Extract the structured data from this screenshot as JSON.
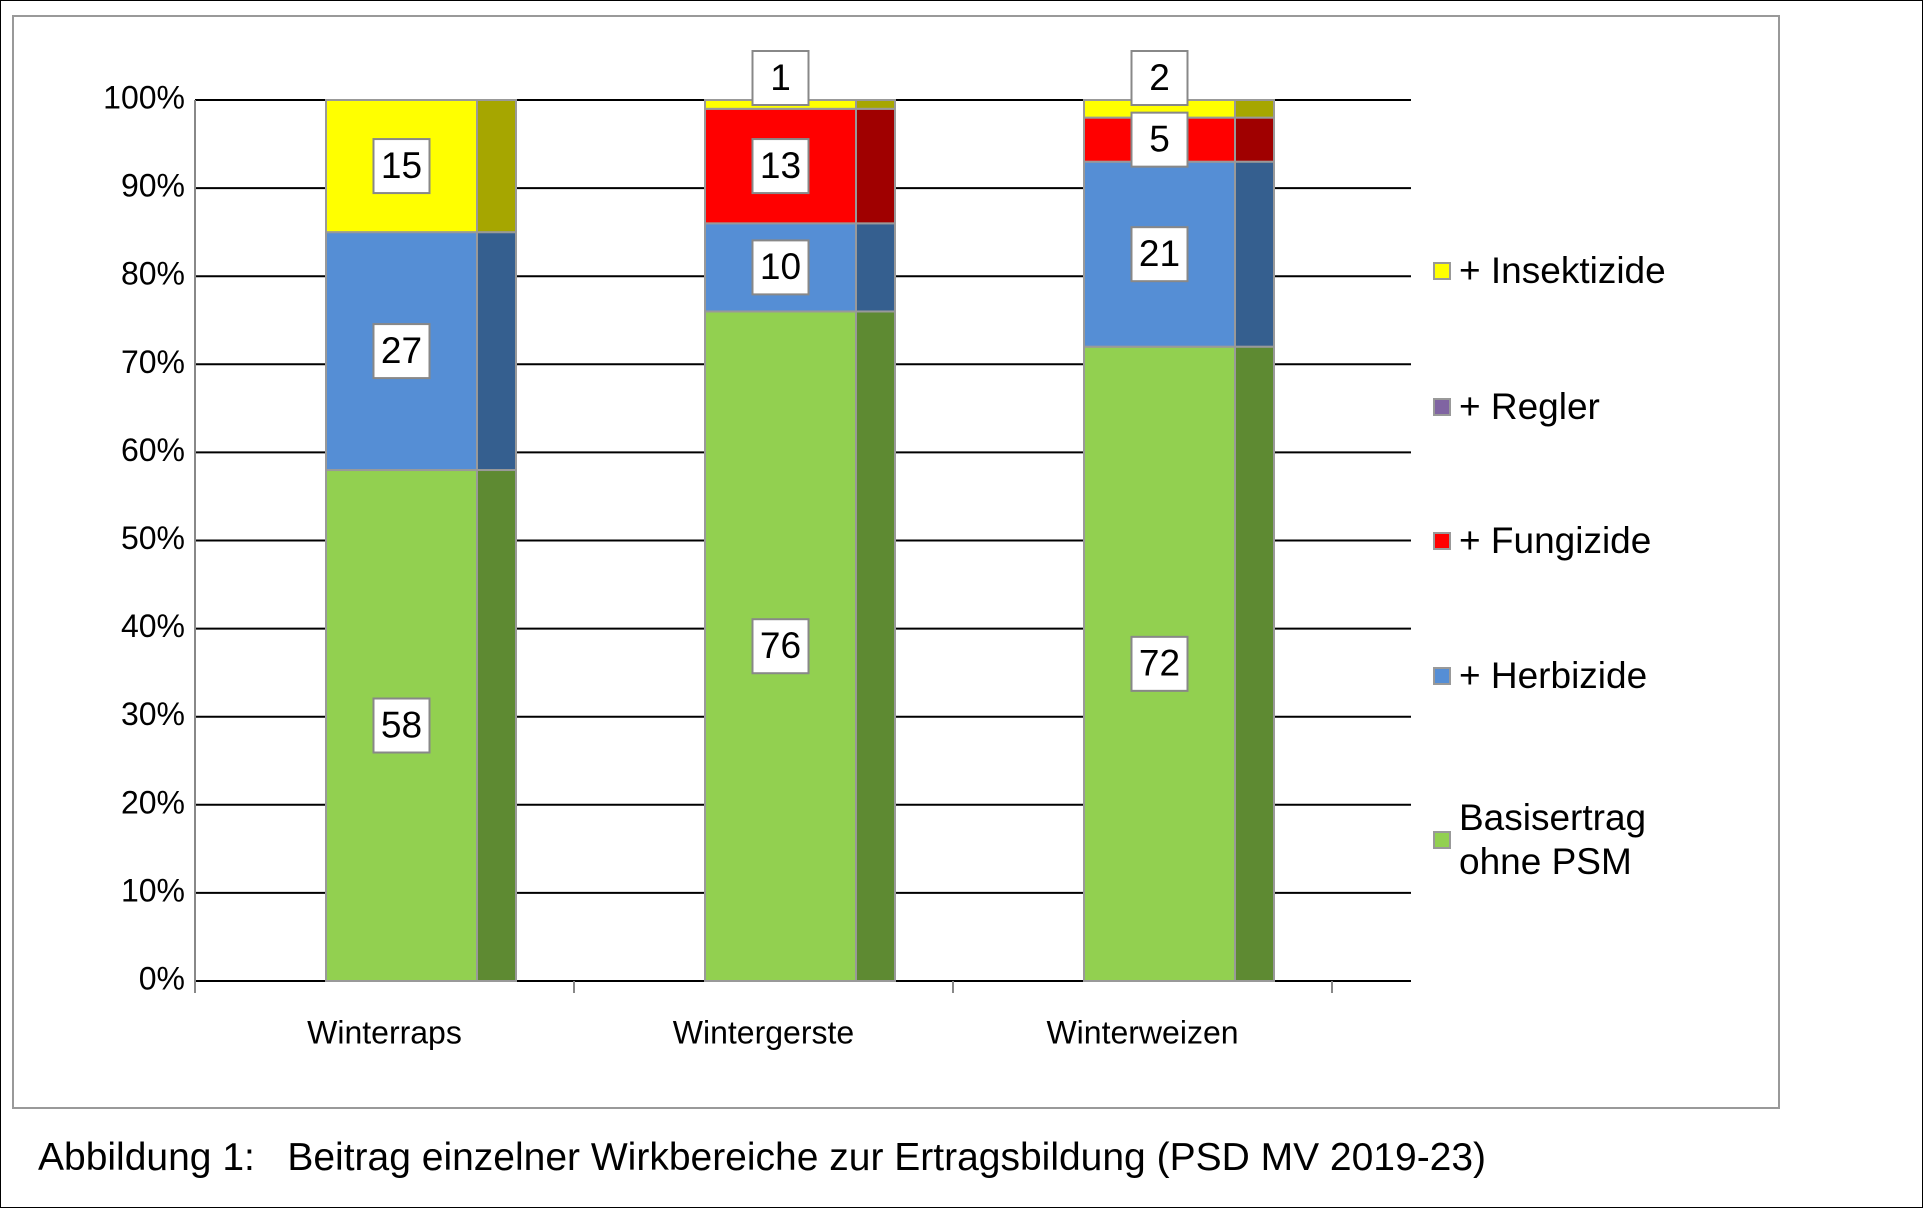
{
  "chart_data": {
    "type": "stacked_bar",
    "caption": "Abbildung 1:   Beitrag einzelner Wirkbereiche zur Ertragsbildung (PSD MV 2019-23)",
    "categories": [
      "Winterraps",
      "Wintergerste",
      "Winterweizen"
    ],
    "series": [
      {
        "name": "Basisertrag ohne PSM",
        "color": "#92d050",
        "side_color": "#5e8a32",
        "values": [
          58,
          76,
          72
        ]
      },
      {
        "name": "+ Herbizide",
        "color": "#558ed5",
        "side_color": "#355f8f",
        "values": [
          27,
          10,
          21
        ]
      },
      {
        "name": "+ Fungizide",
        "color": "#ff0000",
        "side_color": "#a00000",
        "values": [
          0,
          13,
          5
        ]
      },
      {
        "name": "+ Regler",
        "color": "#8064a2",
        "side_color": "#5a4575",
        "values": [
          0,
          0,
          0
        ]
      },
      {
        "name": "+ Insektizide",
        "color": "#ffff00",
        "side_color": "#a6a600",
        "values": [
          15,
          1,
          2
        ]
      }
    ],
    "ylim": [
      0,
      100
    ],
    "yticks": [
      {
        "value": 0,
        "label": "0%"
      },
      {
        "value": 10,
        "label": "10%"
      },
      {
        "value": 20,
        "label": "20%"
      },
      {
        "value": 30,
        "label": "30%"
      },
      {
        "value": 40,
        "label": "40%"
      },
      {
        "value": 50,
        "label": "50%"
      },
      {
        "value": 60,
        "label": "60%"
      },
      {
        "value": 70,
        "label": "70%"
      },
      {
        "value": 80,
        "label": "80%"
      },
      {
        "value": 90,
        "label": "90%"
      },
      {
        "value": 100,
        "label": "100%"
      }
    ],
    "grid": true,
    "legend": "right"
  }
}
